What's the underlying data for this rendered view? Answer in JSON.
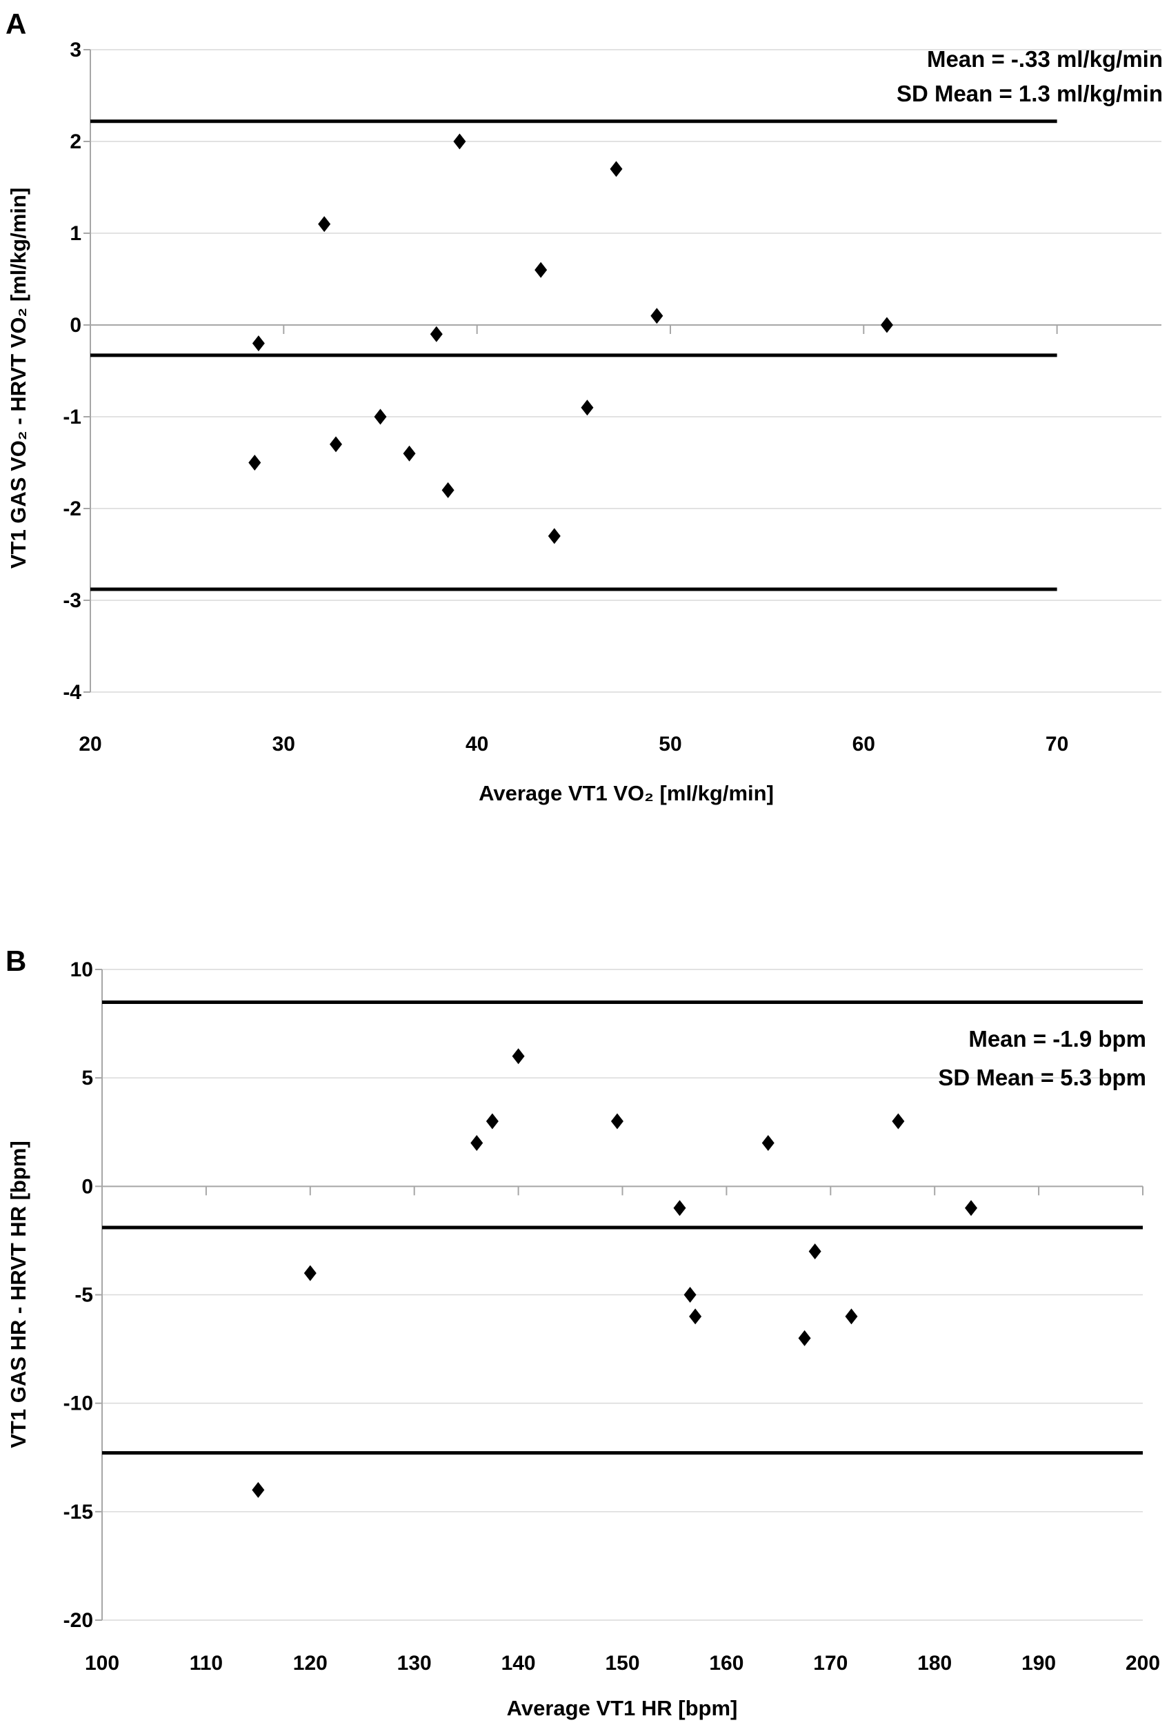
{
  "chart_data": [
    {
      "panel_label": "A",
      "type": "scatter",
      "marker": "diamond",
      "title": "",
      "xlabel": "Average VT1 VO₂ [ml/kg/min]",
      "ylabel": "VT1 GAS VO₂ - HRVT VO₂ [ml/kg/min]",
      "annotations": [
        "Mean = -.33 ml/kg/min",
        "SD Mean = 1.3 ml/kg/min"
      ],
      "mean": -0.33,
      "sd_mean": 1.3,
      "lines": {
        "upper_loa": 2.22,
        "mean": -0.33,
        "lower_loa": -2.88
      },
      "xlim": [
        20,
        75.4
      ],
      "ylim": [
        -4,
        3
      ],
      "x_ticks": [
        20,
        30,
        40,
        50,
        60,
        70
      ],
      "y_ticks": [
        3,
        2,
        1,
        0,
        -1,
        -2,
        -3,
        -4
      ],
      "grid": "horizontal",
      "legend": false,
      "line_span_x": [
        20,
        70
      ],
      "points": [
        [
          28.5,
          -1.5
        ],
        [
          28.7,
          -0.2
        ],
        [
          32.1,
          1.1
        ],
        [
          32.7,
          -1.3
        ],
        [
          35.0,
          -1.0
        ],
        [
          36.5,
          -1.4
        ],
        [
          37.9,
          -0.1
        ],
        [
          38.5,
          -1.8
        ],
        [
          39.1,
          2.0
        ],
        [
          43.3,
          0.6
        ],
        [
          44.0,
          -2.3
        ],
        [
          45.7,
          -0.9
        ],
        [
          47.2,
          1.7
        ],
        [
          49.3,
          0.1
        ],
        [
          61.2,
          0.0
        ]
      ]
    },
    {
      "panel_label": "B",
      "type": "scatter",
      "marker": "diamond",
      "title": "",
      "xlabel": "Average VT1 HR [bpm]",
      "ylabel": "VT1 GAS HR - HRVT HR [bpm]",
      "annotations": [
        "Mean = -1.9 bpm",
        "SD Mean = 5.3 bpm"
      ],
      "mean": -1.9,
      "sd_mean": 5.3,
      "lines": {
        "upper_loa": 8.49,
        "mean": -1.9,
        "lower_loa": -12.29
      },
      "xlim": [
        100,
        200
      ],
      "ylim": [
        -20,
        10
      ],
      "x_ticks": [
        100,
        110,
        120,
        130,
        140,
        150,
        160,
        170,
        180,
        190,
        200
      ],
      "y_ticks": [
        10,
        5,
        0,
        -5,
        -10,
        -15,
        -20
      ],
      "grid": "horizontal",
      "legend": false,
      "line_span_x": [
        100,
        200
      ],
      "points": [
        [
          115,
          -14
        ],
        [
          120,
          -4
        ],
        [
          136,
          2
        ],
        [
          137.5,
          3
        ],
        [
          140,
          6
        ],
        [
          149.5,
          3
        ],
        [
          155.5,
          -1
        ],
        [
          156.5,
          -5
        ],
        [
          157,
          -6
        ],
        [
          164,
          2
        ],
        [
          167.5,
          -7
        ],
        [
          168.5,
          -3
        ],
        [
          172,
          -6
        ],
        [
          176.5,
          3
        ],
        [
          183.5,
          -1
        ]
      ]
    }
  ],
  "colors": {
    "marker": "#000000",
    "loa_line": "#000000",
    "axis": "#a6a6a6",
    "gridline": "#d9d9d9",
    "text": "#000000",
    "background": "#ffffff"
  }
}
